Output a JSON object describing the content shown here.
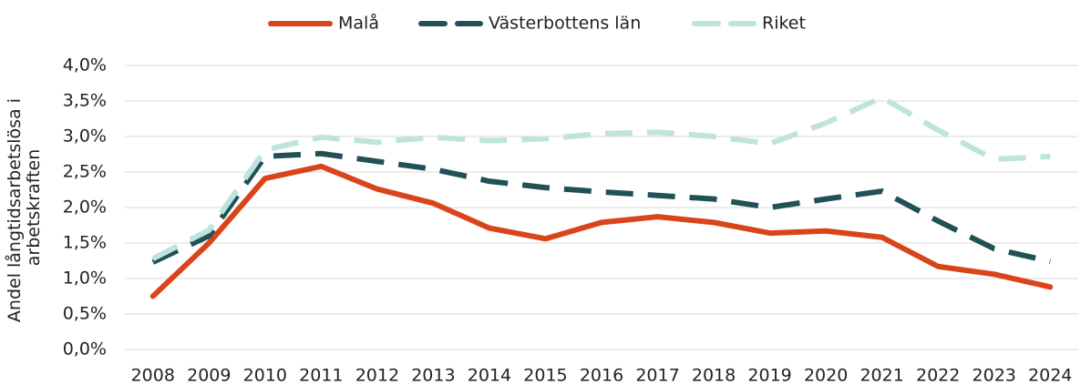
{
  "chart_data": {
    "type": "line",
    "y_label": [
      "Andel långtidsarbetslösa i",
      "arbetskraften"
    ],
    "categories": [
      "2008",
      "2009",
      "2010",
      "2011",
      "2012",
      "2013",
      "2014",
      "2015",
      "2016",
      "2017",
      "2018",
      "2019",
      "2020",
      "2021",
      "2022",
      "2023",
      "2024"
    ],
    "series": [
      {
        "name": "Malå",
        "color": "#d9441a",
        "dashed": false,
        "values": [
          0.75,
          1.5,
          2.41,
          2.58,
          2.26,
          2.06,
          1.71,
          1.56,
          1.79,
          1.87,
          1.79,
          1.64,
          1.67,
          1.58,
          1.17,
          1.06,
          0.88
        ]
      },
      {
        "name": "Västerbottens län",
        "color": "#1f5157",
        "dashed": true,
        "values": [
          1.23,
          1.6,
          2.72,
          2.76,
          2.65,
          2.54,
          2.37,
          2.28,
          2.22,
          2.17,
          2.12,
          2.0,
          2.12,
          2.23,
          1.81,
          1.42,
          1.24
        ]
      },
      {
        "name": "Riket",
        "color": "#bfe3dd",
        "dashed": true,
        "values": [
          1.28,
          1.68,
          2.81,
          2.99,
          2.92,
          2.99,
          2.94,
          2.97,
          3.04,
          3.06,
          3.0,
          2.9,
          3.19,
          3.55,
          3.09,
          2.68,
          2.72
        ]
      }
    ],
    "ylim": [
      0,
      4
    ],
    "yticks": [
      {
        "value": 0,
        "label": "0,0%"
      },
      {
        "value": 0.5,
        "label": "0,5%"
      },
      {
        "value": 1,
        "label": "1,0%"
      },
      {
        "value": 1.5,
        "label": "1,5%"
      },
      {
        "value": 2,
        "label": "2,0%"
      },
      {
        "value": 2.5,
        "label": "2,5%"
      },
      {
        "value": 3,
        "label": "3,0%"
      },
      {
        "value": 3.5,
        "label": "3,5%"
      },
      {
        "value": 4,
        "label": "4,0%"
      }
    ],
    "grid": true,
    "legend": "top"
  }
}
